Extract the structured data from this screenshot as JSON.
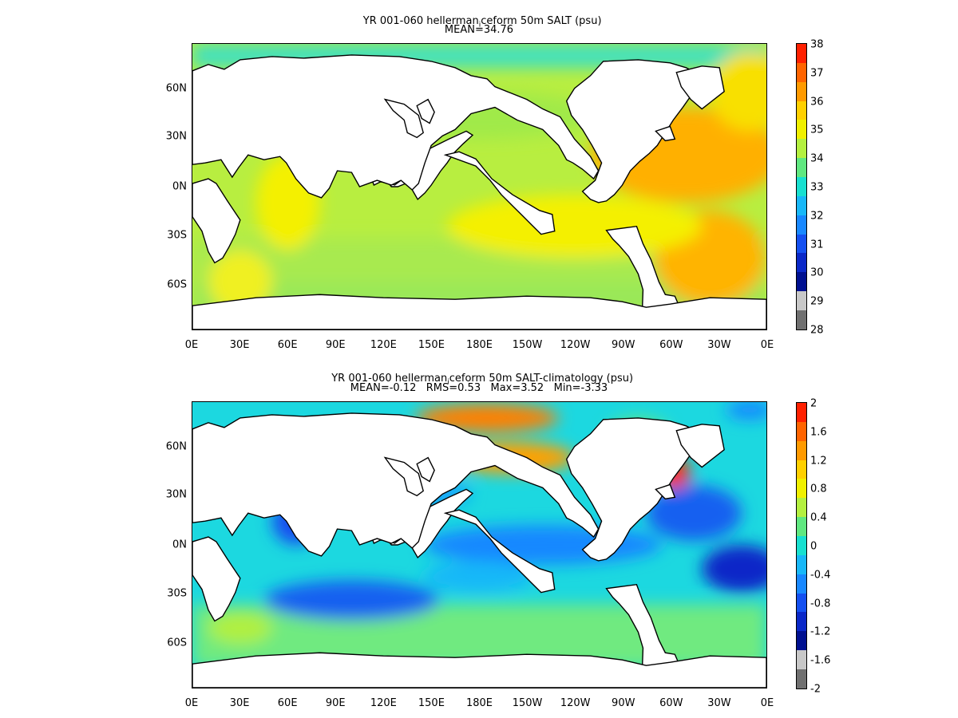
{
  "panels": [
    {
      "title": "YR 001-060 hellerman",
      "title_sub": "i",
      "title_rest": "ceform 50m SALT (psu)",
      "subtitle": "MEAN=34.76",
      "colorbar": {
        "labels": [
          "38",
          "37",
          "36",
          "35",
          "34",
          "33",
          "32",
          "31",
          "30",
          "29",
          "28"
        ],
        "colors": [
          "#ff2000",
          "#ff6400",
          "#ff9a00",
          "#ffd000",
          "#f0f000",
          "#b4f040",
          "#60e880",
          "#18e0d0",
          "#18b8f8",
          "#1888ff",
          "#1450f0",
          "#0a28c8",
          "#001090",
          "#c8c8c8",
          "#707070"
        ]
      }
    },
    {
      "title": "YR 001-060 hellerman",
      "title_sub": "i",
      "title_rest": "ceform 50m SALT-climatology (psu)",
      "subtitle": "MEAN=-0.12   RMS=0.53   Max=3.52   Min=-3.33",
      "colorbar": {
        "labels": [
          "2",
          "1.6",
          "1.2",
          "0.8",
          "0.4",
          "0",
          "-0.4",
          "-0.8",
          "-1.2",
          "-1.6",
          "-2"
        ],
        "colors": [
          "#ff2000",
          "#ff6400",
          "#ff9a00",
          "#ffd000",
          "#f0f000",
          "#b4f040",
          "#60e880",
          "#18e0d0",
          "#18b8f8",
          "#1888ff",
          "#1450f0",
          "#0a28c8",
          "#001090",
          "#c8c8c8",
          "#707070"
        ]
      }
    }
  ],
  "x_ticks": [
    "0E",
    "30E",
    "60E",
    "90E",
    "120E",
    "150E",
    "180E",
    "150W",
    "120W",
    "90W",
    "60W",
    "30W",
    "0E"
  ],
  "y_ticks": [
    "60N",
    "30N",
    "0N",
    "30S",
    "60S"
  ]
}
